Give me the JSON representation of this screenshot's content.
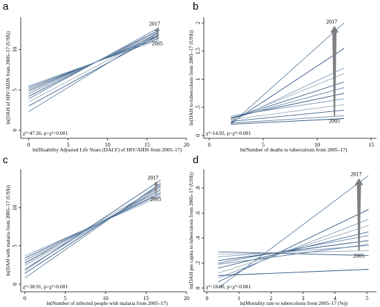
{
  "chart_data": [
    {
      "type": "line",
      "panel_label": "a",
      "xlabel": "ln(Disability Adjusted Life Years (DALY) of HIV/AIDS from 2005–17)",
      "ylabel": "ln(DAH of HIV/AIDS from 2005–17 (US$))",
      "xlim": [
        -1,
        20
      ],
      "ylim": [
        -1,
        14
      ],
      "xticks": [
        "0",
        "5",
        "10",
        "15",
        "20"
      ],
      "yticks": [
        "0",
        "5",
        "10"
      ],
      "xtick_values": [
        0,
        5,
        10,
        15,
        20
      ],
      "ytick_values": [
        0,
        5,
        10
      ],
      "annotation": "χ²=47.26, p>χ²=0.001",
      "year_start": "2005",
      "year_end": "2017",
      "grid": false,
      "series": [
        {
          "x": [
            0,
            16.5
          ],
          "y": [
            3.9,
            12.7
          ]
        },
        {
          "x": [
            0,
            16.5
          ],
          "y": [
            4.2,
            12.4
          ]
        },
        {
          "x": [
            0,
            16.5
          ],
          "y": [
            4.5,
            12.2
          ]
        },
        {
          "x": [
            0,
            16.5
          ],
          "y": [
            4.7,
            12.0
          ]
        },
        {
          "x": [
            0,
            16.5
          ],
          "y": [
            4.9,
            11.8
          ]
        },
        {
          "x": [
            0,
            16.5
          ],
          "y": [
            5.1,
            11.6
          ]
        },
        {
          "x": [
            0,
            16.5
          ],
          "y": [
            5.3,
            11.4
          ]
        },
        {
          "x": [
            0,
            16.5
          ],
          "y": [
            5.5,
            11.2
          ]
        },
        {
          "x": [
            0,
            16.5
          ],
          "y": [
            3.5,
            12.0
          ]
        },
        {
          "x": [
            0,
            16.5
          ],
          "y": [
            3.0,
            11.8
          ]
        },
        {
          "x": [
            0,
            16.5
          ],
          "y": [
            2.3,
            12.2
          ]
        }
      ],
      "arrow": {
        "x": [
          16.3,
          16.3
        ],
        "y": [
          11.4,
          12.7
        ]
      }
    },
    {
      "type": "line",
      "panel_label": "b",
      "xlabel": "ln(Number of deaths to tuberculosis from 2005–17)",
      "ylabel": "ln(DAH to tuberculosis from 2005–17 (US$))",
      "xlim": [
        -0.5,
        15.5
      ],
      "ylim": [
        -0.05,
        2.1
      ],
      "xticks": [
        "0",
        "5",
        "10",
        "15"
      ],
      "yticks": [
        "0",
        ".5",
        "1",
        "1.5",
        "2"
      ],
      "xtick_values": [
        0,
        5,
        10,
        15
      ],
      "ytick_values": [
        0,
        0.5,
        1,
        1.5,
        2
      ],
      "annotation": "χ²=14.92, p>χ²=0.001",
      "year_start": "2005",
      "year_end": "2017",
      "grid": false,
      "series": [
        {
          "x": [
            2,
            12.5
          ],
          "y": [
            0.2,
            2.0
          ]
        },
        {
          "x": [
            2,
            12.5
          ],
          "y": [
            0.22,
            1.55
          ]
        },
        {
          "x": [
            2,
            12.5
          ],
          "y": [
            0.25,
            1.2
          ]
        },
        {
          "x": [
            2,
            12.5
          ],
          "y": [
            0.28,
            1.1
          ]
        },
        {
          "x": [
            2,
            12.5
          ],
          "y": [
            0.3,
            0.95
          ]
        },
        {
          "x": [
            2,
            12.5
          ],
          "y": [
            0.3,
            0.85
          ]
        },
        {
          "x": [
            2,
            12.5
          ],
          "y": [
            0.32,
            0.75
          ]
        },
        {
          "x": [
            2,
            12.5
          ],
          "y": [
            0.35,
            0.65
          ]
        },
        {
          "x": [
            2,
            12.5
          ],
          "y": [
            0.28,
            0.55
          ]
        },
        {
          "x": [
            2,
            12.5
          ],
          "y": [
            0.25,
            0.45
          ]
        },
        {
          "x": [
            2,
            12.5
          ],
          "y": [
            0.22,
            0.35
          ]
        },
        {
          "x": [
            2,
            12.5
          ],
          "y": [
            0.2,
            0.3
          ]
        }
      ],
      "arrow": {
        "x": [
          11.6,
          11.6
        ],
        "y": [
          0.35,
          1.95
        ]
      }
    },
    {
      "type": "line",
      "panel_label": "c",
      "xlabel": "ln(Number of infected people with malaria from 2005–17)",
      "ylabel": "ln(DAH with malaria from 2005–17 (US$))",
      "xlim": [
        -0.5,
        20
      ],
      "ylim": [
        -1,
        15
      ],
      "xticks": [
        "0",
        "5",
        "10",
        "15",
        "20"
      ],
      "yticks": [
        "0",
        "5",
        "10"
      ],
      "xtick_values": [
        0,
        5,
        10,
        15,
        20
      ],
      "ytick_values": [
        0,
        5,
        10
      ],
      "annotation": "χ²=38.91, p>χ²=0.001",
      "year_start": "2005",
      "year_end": "2017",
      "grid": false,
      "series": [
        {
          "x": [
            0,
            16.8
          ],
          "y": [
            0.8,
            13.2
          ]
        },
        {
          "x": [
            0,
            16.8
          ],
          "y": [
            1.4,
            13.0
          ]
        },
        {
          "x": [
            0,
            16.8
          ],
          "y": [
            2.0,
            12.7
          ]
        },
        {
          "x": [
            0,
            16.8
          ],
          "y": [
            2.4,
            12.5
          ]
        },
        {
          "x": [
            0,
            16.8
          ],
          "y": [
            2.8,
            12.3
          ]
        },
        {
          "x": [
            0,
            16.8
          ],
          "y": [
            3.1,
            12.0
          ]
        },
        {
          "x": [
            0,
            16.8
          ],
          "y": [
            3.4,
            11.8
          ]
        },
        {
          "x": [
            0,
            16.8
          ],
          "y": [
            3.7,
            11.5
          ]
        },
        {
          "x": [
            0,
            16.8
          ],
          "y": [
            2.6,
            12.8
          ]
        },
        {
          "x": [
            0,
            16.8
          ],
          "y": [
            1.8,
            13.6
          ]
        }
      ],
      "arrow": {
        "x": [
          16.2,
          16.2
        ],
        "y": [
          11.8,
          13.4
        ]
      }
    },
    {
      "type": "line",
      "panel_label": "d",
      "xlabel": "ln(Mortality rate to tuberculosis from 2005–17 (%))",
      "ylabel": "ln(DAH per capita to tuberculosis from 2005–17 (US$))",
      "xlim": [
        -0.1,
        5.3
      ],
      "ylim": [
        -0.03,
        0.95
      ],
      "xticks": [
        "0",
        "1",
        "2",
        "3",
        "4",
        "5"
      ],
      "yticks": [
        "0",
        ".2",
        ".4",
        ".6",
        ".8"
      ],
      "xtick_values": [
        0,
        1,
        2,
        3,
        4,
        5
      ],
      "ytick_values": [
        0,
        0.2,
        0.4,
        0.6,
        0.8
      ],
      "annotation": "χ²=18.00, p>χ²=0.001",
      "year_start": "2005",
      "year_end": "2017",
      "grid": false,
      "series": [
        {
          "x": [
            0.35,
            5.05
          ],
          "y": [
            0.0,
            0.9
          ]
        },
        {
          "x": [
            0.35,
            5.05
          ],
          "y": [
            0.05,
            0.63
          ]
        },
        {
          "x": [
            0.35,
            5.05
          ],
          "y": [
            0.08,
            0.55
          ]
        },
        {
          "x": [
            0.35,
            5.05
          ],
          "y": [
            0.12,
            0.5
          ]
        },
        {
          "x": [
            0.35,
            5.05
          ],
          "y": [
            0.16,
            0.45
          ]
        },
        {
          "x": [
            0.35,
            5.05
          ],
          "y": [
            0.2,
            0.42
          ]
        },
        {
          "x": [
            0.35,
            5.05
          ],
          "y": [
            0.22,
            0.38
          ]
        },
        {
          "x": [
            0.35,
            5.05
          ],
          "y": [
            0.25,
            0.34
          ]
        },
        {
          "x": [
            0.35,
            5.05
          ],
          "y": [
            0.27,
            0.3
          ]
        },
        {
          "x": [
            0.35,
            5.05
          ],
          "y": [
            0.29,
            0.26
          ]
        },
        {
          "x": [
            0.35,
            5.05
          ],
          "y": [
            0.19,
            0.35
          ]
        },
        {
          "x": [
            0.35,
            5.05
          ],
          "y": [
            0.1,
            0.15
          ]
        }
      ],
      "arrow": {
        "x": [
          4.75,
          4.75
        ],
        "y": [
          0.3,
          0.88
        ]
      }
    }
  ],
  "colors": {
    "series": [
      "#5b7fa3",
      "#2c4f7c",
      "#7d9bbd",
      "#9aa8b5",
      "#3a5e88"
    ],
    "arrow": "#7f7f7f",
    "axis": "#000000"
  }
}
